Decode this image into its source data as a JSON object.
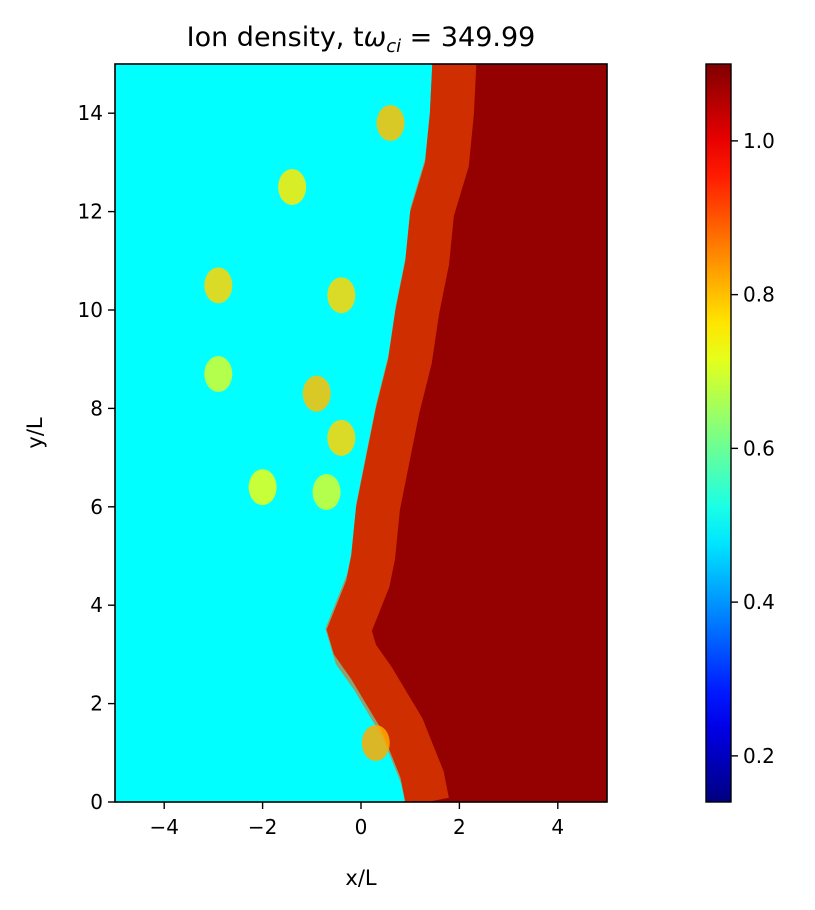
{
  "chart_data": {
    "type": "heatmap",
    "title": {
      "prefix": "Ion density, t",
      "omega": "ω",
      "subscript": "ci",
      "suffix": " = 349.99"
    },
    "xlabel": "x/L",
    "ylabel": "y/L",
    "xlim": [
      -5,
      5
    ],
    "ylim": [
      0,
      15
    ],
    "x_ticks": [
      {
        "value": -4,
        "label": "−4"
      },
      {
        "value": -2,
        "label": "−2"
      },
      {
        "value": 0,
        "label": "0"
      },
      {
        "value": 2,
        "label": "2"
      },
      {
        "value": 4,
        "label": "4"
      }
    ],
    "y_ticks": [
      {
        "value": 0,
        "label": "0"
      },
      {
        "value": 2,
        "label": "2"
      },
      {
        "value": 4,
        "label": "4"
      },
      {
        "value": 6,
        "label": "6"
      },
      {
        "value": 8,
        "label": "8"
      },
      {
        "value": 10,
        "label": "10"
      },
      {
        "value": 12,
        "label": "12"
      },
      {
        "value": 14,
        "label": "14"
      }
    ],
    "colormap": "jet",
    "colorbar": {
      "range": [
        0.14,
        1.1
      ],
      "ticks": [
        {
          "value": 0.2,
          "label": "0.2"
        },
        {
          "value": 0.4,
          "label": "0.4"
        },
        {
          "value": 0.6,
          "label": "0.6"
        },
        {
          "value": 0.8,
          "label": "0.8"
        },
        {
          "value": 1.0,
          "label": "1.0"
        }
      ]
    },
    "field": {
      "background_left": 0.5,
      "background_right": 1.08,
      "interface_x_at_y": [
        [
          0,
          0.9
        ],
        [
          0.5,
          0.8
        ],
        [
          1,
          0.6
        ],
        [
          1.5,
          0.4
        ],
        [
          2,
          0.1
        ],
        [
          2.5,
          -0.2
        ],
        [
          3,
          -0.55
        ],
        [
          3.5,
          -0.7
        ],
        [
          4,
          -0.5
        ],
        [
          4.5,
          -0.3
        ],
        [
          5,
          -0.2
        ],
        [
          6,
          -0.1
        ],
        [
          7,
          0.1
        ],
        [
          8,
          0.3
        ],
        [
          9,
          0.55
        ],
        [
          10,
          0.7
        ],
        [
          11,
          0.9
        ],
        [
          12,
          1.0
        ],
        [
          13,
          1.3
        ],
        [
          14,
          1.4
        ],
        [
          15,
          1.45
        ]
      ],
      "blobs": [
        {
          "x": -2.9,
          "y": 10.5,
          "v": 0.78
        },
        {
          "x": -2.0,
          "y": 6.4,
          "v": 0.72
        },
        {
          "x": -2.9,
          "y": 8.7,
          "v": 0.7
        },
        {
          "x": -0.9,
          "y": 8.3,
          "v": 0.8
        },
        {
          "x": -0.4,
          "y": 7.4,
          "v": 0.78
        },
        {
          "x": -0.4,
          "y": 10.3,
          "v": 0.78
        },
        {
          "x": -1.4,
          "y": 12.5,
          "v": 0.76
        },
        {
          "x": -0.7,
          "y": 6.3,
          "v": 0.7
        },
        {
          "x": 0.6,
          "y": 13.8,
          "v": 0.8
        },
        {
          "x": 0.3,
          "y": 1.2,
          "v": 0.82
        }
      ]
    }
  }
}
